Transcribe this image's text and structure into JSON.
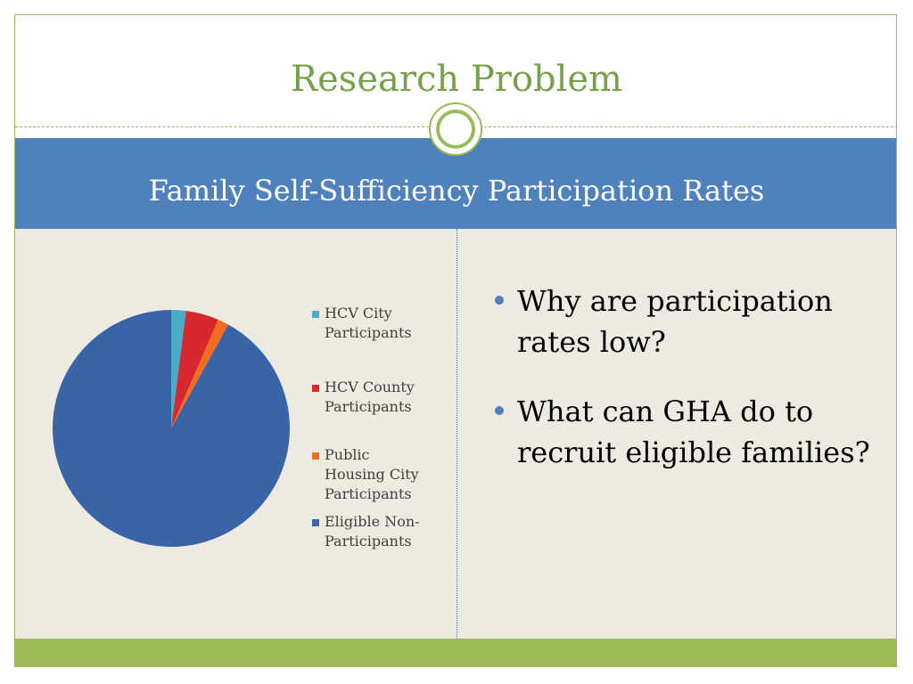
{
  "slide": {
    "title": "Research Problem",
    "subtitle": "Family Self-Sufficiency Participation Rates",
    "bullets": [
      "Why are participation rates low?",
      "What can GHA do to recruit eligible families?"
    ]
  },
  "colors": {
    "title_green": "#77a04a",
    "accent_green": "#9bbb59",
    "band_blue": "#4f81bd",
    "content_bg": "#eceae1"
  },
  "chart_data": {
    "type": "pie",
    "title": "",
    "legend_position": "right",
    "slices": [
      {
        "label": "HCV City Participants",
        "legend_lines": [
          "HCV City",
          "Participants"
        ],
        "value": 2,
        "color": "#4bacc6"
      },
      {
        "label": "HCV County Participants",
        "legend_lines": [
          "HCV County",
          "Participants"
        ],
        "value": 4.5,
        "color": "#d7282f"
      },
      {
        "label": "Public Housing City Participants",
        "legend_lines": [
          "Public",
          "Housing City",
          "Participants"
        ],
        "value": 1.5,
        "color": "#f26c22"
      },
      {
        "label": "Eligible Non-Participants",
        "legend_lines": [
          "Eligible Non-",
          "Participants"
        ],
        "value": 92,
        "color": "#3a64a8"
      }
    ]
  }
}
